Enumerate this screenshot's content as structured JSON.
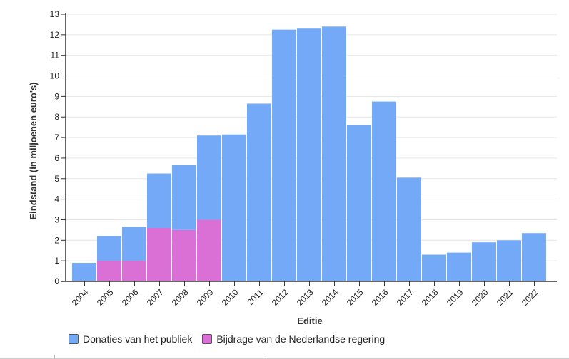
{
  "chart_data": {
    "type": "bar",
    "stacked": true,
    "xlabel": "Editie",
    "ylabel": "Eindstand (in miljoenen euro's)",
    "ylim": [
      0,
      13
    ],
    "yticks": [
      0,
      1,
      2,
      3,
      4,
      5,
      6,
      7,
      8,
      9,
      10,
      11,
      12,
      13
    ],
    "grid": true,
    "legend_position": "bottom-left",
    "categories": [
      "2004",
      "2005",
      "2006",
      "2007",
      "2008",
      "2009",
      "2010",
      "2011",
      "2012",
      "2013",
      "2014",
      "2015",
      "2016",
      "2017",
      "2018",
      "2019",
      "2020",
      "2021",
      "2022"
    ],
    "series": [
      {
        "name": "Bijdrage van de Nederlandse regering",
        "color": "#da70d6",
        "values": [
          0,
          1.0,
          1.0,
          2.6,
          2.5,
          3.0,
          0,
          0,
          0,
          0,
          0,
          0,
          0,
          0,
          0,
          0,
          0,
          0,
          0
        ]
      },
      {
        "name": "Donaties van het publiek",
        "color": "#74a9f8",
        "values": [
          0.9,
          1.2,
          1.65,
          2.65,
          3.15,
          4.1,
          7.15,
          8.65,
          12.25,
          12.3,
          12.4,
          7.6,
          8.75,
          5.05,
          1.3,
          1.4,
          1.9,
          2.0,
          2.35
        ]
      }
    ]
  },
  "legend": [
    {
      "label": "Donaties van het publiek",
      "color": "#74a9f8"
    },
    {
      "label": "Bijdrage van de Nederlandse regering",
      "color": "#da70d6"
    }
  ]
}
